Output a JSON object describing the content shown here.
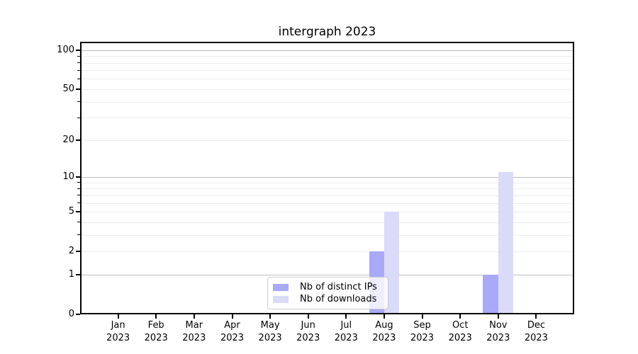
{
  "title": "intergraph 2023",
  "chart_data": {
    "type": "bar",
    "title": "intergraph 2023",
    "categories": [
      "Jan 2023",
      "Feb 2023",
      "Mar 2023",
      "Apr 2023",
      "May 2023",
      "Jun 2023",
      "Jul 2023",
      "Aug 2023",
      "Sep 2023",
      "Oct 2023",
      "Nov 2023",
      "Dec 2023"
    ],
    "series": [
      {
        "name": "Nb of distinct IPs",
        "color": "#a9a9f7",
        "values": [
          0,
          0,
          0,
          0,
          0,
          0,
          0,
          2,
          0,
          0,
          1,
          0
        ]
      },
      {
        "name": "Nb of downloads",
        "color": "#dadaf9",
        "values": [
          0,
          0,
          0,
          0,
          0,
          0,
          0,
          5,
          0,
          0,
          11,
          0
        ]
      }
    ],
    "xlabel": "",
    "ylabel": "",
    "yscale": "log1p (symlog-like: 0 linear to 1, log above)",
    "ylim": [
      0,
      116
    ],
    "ytick_labels": [
      "0",
      "1",
      "2",
      "5",
      "10",
      "20",
      "50",
      "100"
    ],
    "ytick_values": [
      0,
      1,
      2,
      5,
      10,
      20,
      50,
      100
    ],
    "grid": {
      "on": true,
      "major_values": [
        1,
        10,
        100
      ],
      "minor_values": [
        2,
        3,
        4,
        5,
        6,
        7,
        8,
        9,
        20,
        30,
        40,
        50,
        60,
        70,
        80,
        90
      ]
    },
    "legend_position": "inside axes, lower center",
    "bar_layout": "grouped pairs centered on month tick"
  },
  "colors": {
    "background": "#ffffff",
    "spine": "#000000",
    "grid_major": "#bcbcbc",
    "grid_minor": "#ececec",
    "bar_distinct_ips": "#a9a9f7",
    "bar_downloads": "#dadaf9",
    "legend_border": "#cccccc",
    "text": "#000000"
  }
}
